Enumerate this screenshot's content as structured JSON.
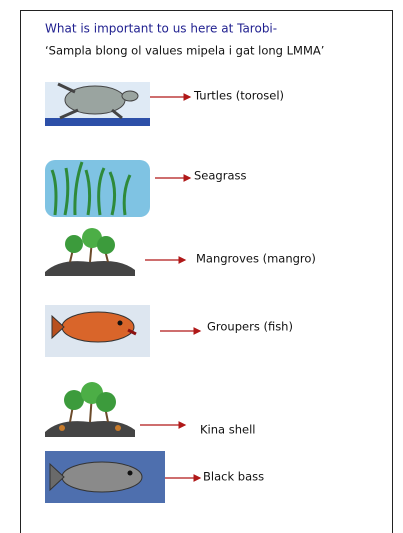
{
  "header": {
    "title": "What is important to us here at Tarobi-",
    "subtitle": "‘Sampla blong ol values mipela i gat long LMMA’"
  },
  "items": [
    {
      "label": "Turtles (torosel)"
    },
    {
      "label": "Seagrass"
    },
    {
      "label": "Mangroves (mangro)"
    },
    {
      "label": "Groupers (fish)"
    },
    {
      "label": "Kina shell"
    },
    {
      "label": "Black bass"
    }
  ]
}
